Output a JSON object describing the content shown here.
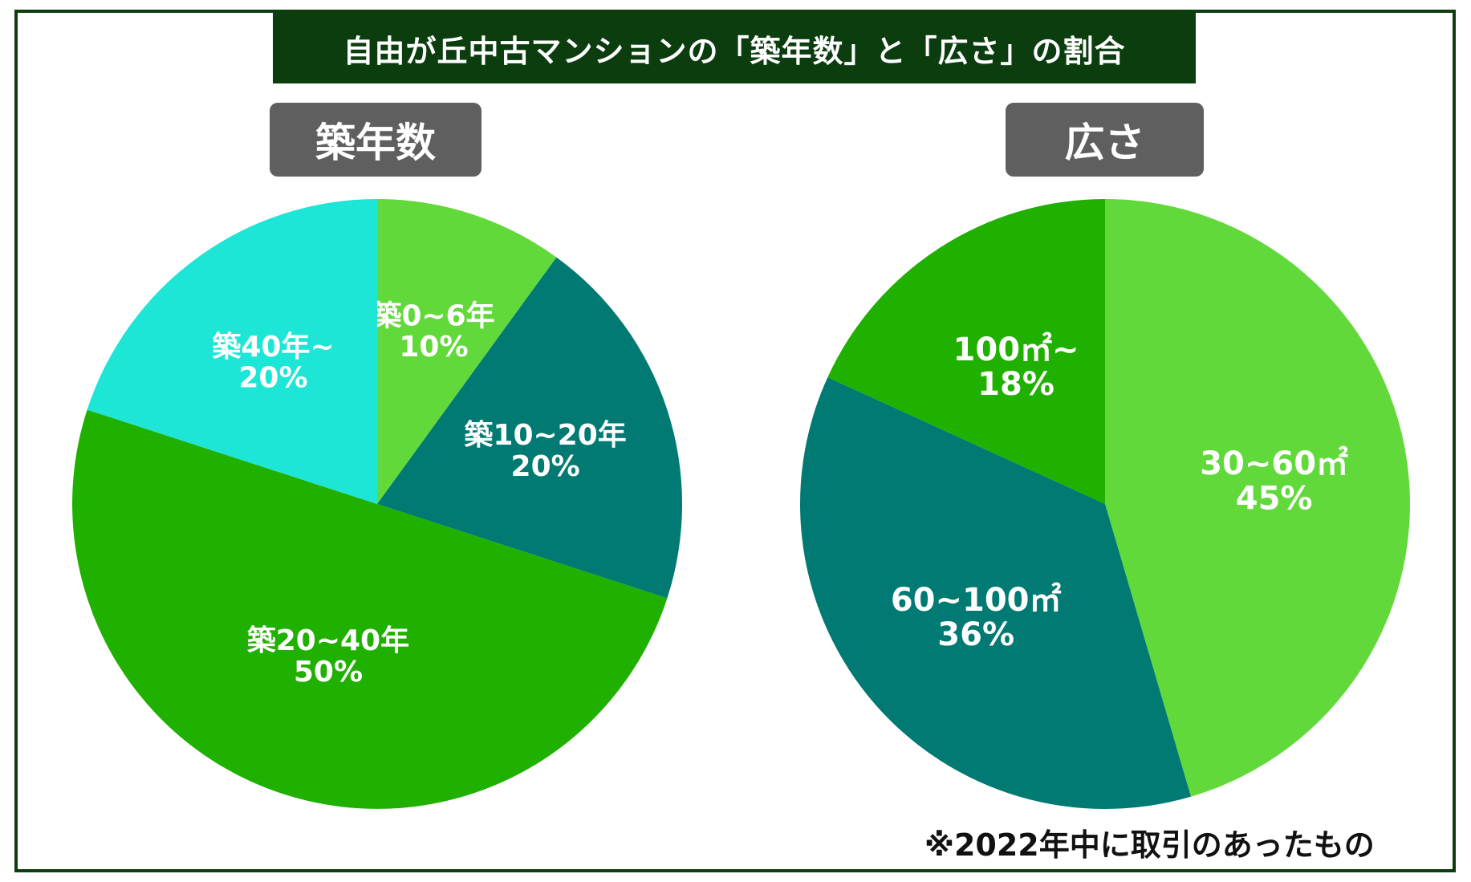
{
  "title": "自由が丘中古マンションの「築年数」と「広さ」の割合",
  "footnote": "※2022年中に取引のあったもの",
  "colors": {
    "frame": "#0b3d0e",
    "title_bg": "#0b3d0e",
    "tag_bg": "#5f5f5f",
    "light_green": "#62d93a",
    "teal": "#007a72",
    "green": "#1fb000",
    "cyan": "#1de6d6"
  },
  "chart_data": [
    {
      "type": "pie",
      "title": "築年数",
      "start": "12 o'clock",
      "direction": "clockwise",
      "slices": [
        {
          "category": "築0~6年",
          "value": 10,
          "label": "10%",
          "color": "#62d93a"
        },
        {
          "category": "築10~20年",
          "value": 20,
          "label": "20%",
          "color": "#007a72"
        },
        {
          "category": "築20~40年",
          "value": 50,
          "label": "50%",
          "color": "#1fb000"
        },
        {
          "category": "築40年~",
          "value": 20,
          "label": "20%",
          "color": "#1de6d6"
        }
      ]
    },
    {
      "type": "pie",
      "title": "広さ",
      "start": "12 o'clock",
      "direction": "clockwise",
      "slices": [
        {
          "category": "30~60㎡",
          "value": 45,
          "label": "45%",
          "color": "#62d93a"
        },
        {
          "category": "60~100㎡",
          "value": 36,
          "label": "36%",
          "color": "#007a72"
        },
        {
          "category": "100㎡~",
          "value": 18,
          "label": "18%",
          "color": "#1fb000"
        }
      ]
    }
  ]
}
